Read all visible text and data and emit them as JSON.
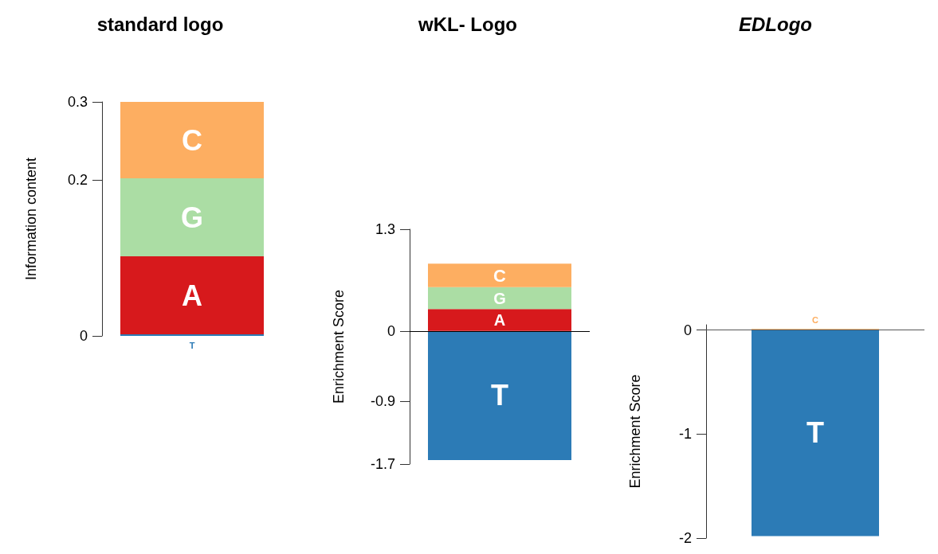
{
  "chart_data": [
    {
      "type": "bar",
      "title": "standard logo",
      "ylabel": "Information content",
      "categories": [
        null
      ],
      "stacked": true,
      "ylim": [
        0,
        0.3
      ],
      "yticks": [
        0,
        0.2,
        0.3
      ],
      "grid": false,
      "legend": false,
      "series": [
        {
          "name": "T",
          "color": "#2c7bb6",
          "values": [
            0.002
          ]
        },
        {
          "name": "A",
          "color": "#d7191c",
          "values": [
            0.1
          ]
        },
        {
          "name": "G",
          "color": "#abdda4",
          "values": [
            0.1
          ]
        },
        {
          "name": "C",
          "color": "#fdae61",
          "values": [
            0.098
          ]
        }
      ]
    },
    {
      "type": "bar",
      "title": "wKL- Logo",
      "ylabel": "Enrichment Score",
      "categories": [
        null
      ],
      "stacked": true,
      "ylim": [
        -1.7,
        1.3
      ],
      "yticks": [
        -1.7,
        -0.9,
        0,
        1.3
      ],
      "grid": false,
      "legend": false,
      "ref_lines": [
        {
          "axis": "y",
          "value": 0,
          "color": "#000000"
        }
      ],
      "series": [
        {
          "name": "T",
          "color": "#2c7bb6",
          "values": [
            -1.65
          ]
        },
        {
          "name": "A",
          "color": "#d7191c",
          "values": [
            0.28
          ]
        },
        {
          "name": "G",
          "color": "#abdda4",
          "values": [
            0.28
          ]
        },
        {
          "name": "C",
          "color": "#fdae61",
          "values": [
            0.3
          ]
        }
      ]
    },
    {
      "type": "bar",
      "title": "EDLogo",
      "ylabel": "Enrichment Score",
      "categories": [
        null
      ],
      "stacked": true,
      "ylim": [
        -2,
        0.05
      ],
      "yticks": [
        -2,
        -1,
        0
      ],
      "grid": false,
      "legend": false,
      "ref_lines": [
        {
          "axis": "y",
          "value": 0,
          "color": "#555555"
        }
      ],
      "series": [
        {
          "name": "T",
          "color": "#2c7bb6",
          "values": [
            -1.98
          ]
        },
        {
          "name": "C",
          "color": "#fdae61",
          "values": [
            0.01
          ]
        }
      ]
    }
  ]
}
